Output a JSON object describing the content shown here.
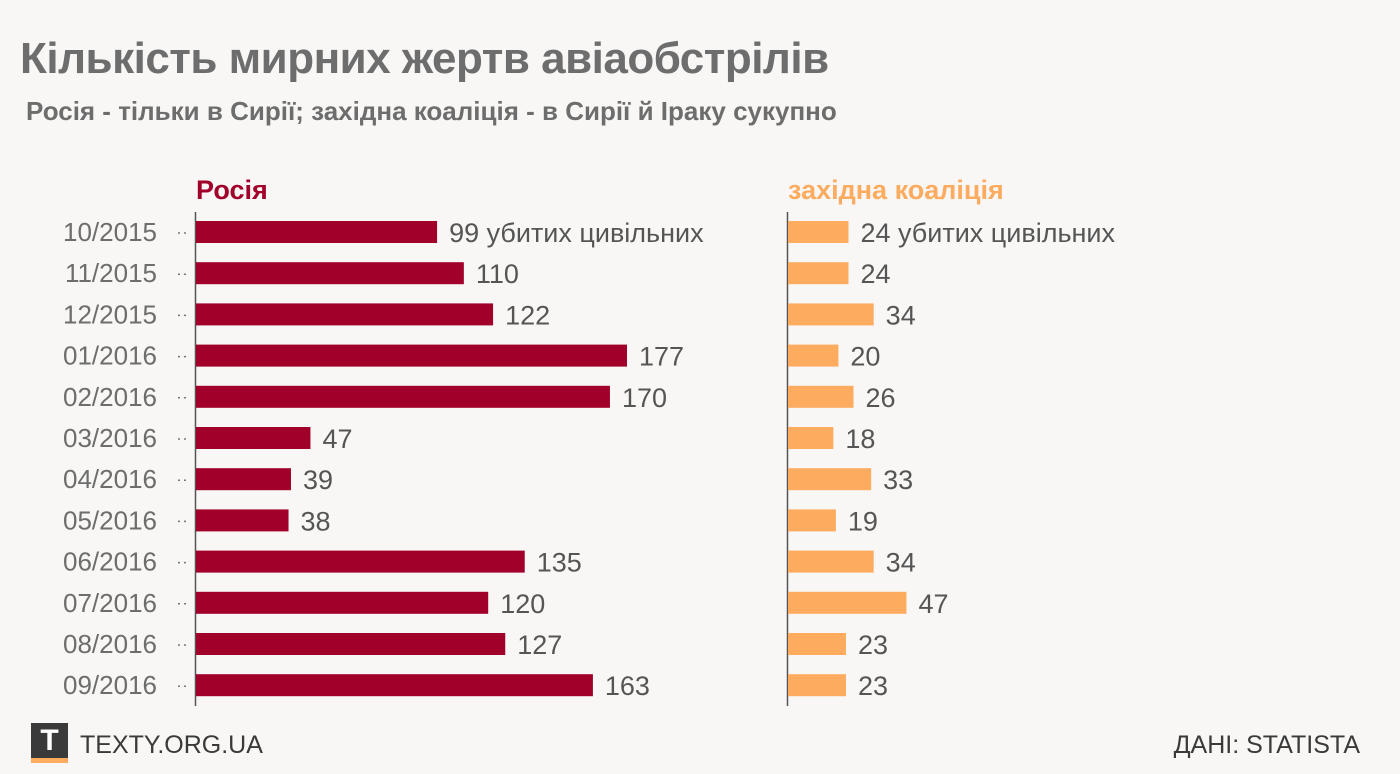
{
  "chart_data": {
    "type": "bar",
    "title": "Кількість мирних жертв авіаобстрілів",
    "subtitle": "Росія - тільки в Сирії; західна коаліція - в Сирії й Іраку сукупно",
    "categories": [
      "10/2015",
      "11/2015",
      "12/2015",
      "01/2016",
      "02/2016",
      "03/2016",
      "04/2016",
      "05/2016",
      "06/2016",
      "07/2016",
      "08/2016",
      "09/2016"
    ],
    "first_value_suffix": "убитих цивільних",
    "series": [
      {
        "name": "Росія",
        "color": "#a1002a",
        "values": [
          99,
          110,
          122,
          177,
          170,
          47,
          39,
          38,
          135,
          120,
          127,
          163
        ]
      },
      {
        "name": "західна коаліція",
        "color": "#fdab5f",
        "values": [
          24,
          24,
          34,
          20,
          26,
          18,
          33,
          19,
          34,
          47,
          23,
          23
        ]
      }
    ]
  },
  "footer": {
    "logo_letter": "T",
    "site": "TEXTY.ORG.UA",
    "source": "ДАНІ: STATISTA"
  },
  "colors": {
    "russia": "#a1002a",
    "coalition": "#fdab5f",
    "background": "#f8f7f5",
    "text": "#6d6d6d"
  }
}
